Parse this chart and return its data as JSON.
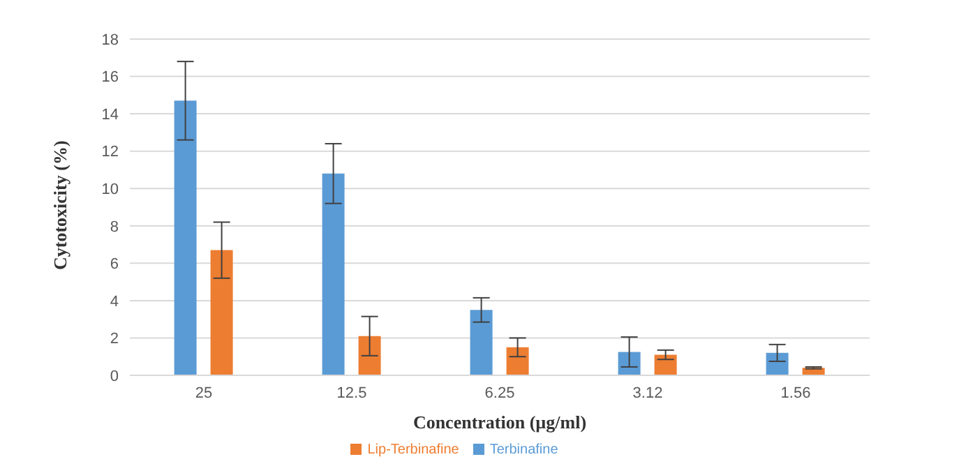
{
  "chart_data": {
    "type": "bar",
    "xlabel": "Concentration (µg/ml)",
    "ylabel": "Cytotoxicity (%)",
    "categories": [
      "25",
      "12.5",
      "6.25",
      "3.12",
      "1.56"
    ],
    "series": [
      {
        "name": "Terbinafine",
        "color": "#5b9bd5",
        "values": [
          14.7,
          10.8,
          3.5,
          1.25,
          1.2
        ],
        "errors": [
          2.1,
          1.6,
          0.65,
          0.8,
          0.45
        ]
      },
      {
        "name": "Lip-Terbinafine",
        "color": "#ed7d31",
        "values": [
          6.7,
          2.1,
          1.5,
          1.1,
          0.4
        ],
        "errors": [
          1.5,
          1.05,
          0.5,
          0.25,
          0.05
        ]
      }
    ],
    "ylim": [
      0,
      18
    ],
    "yticks": [
      0,
      2,
      4,
      6,
      8,
      10,
      12,
      14,
      16,
      18
    ],
    "grid": "y",
    "legend": "bottom"
  }
}
